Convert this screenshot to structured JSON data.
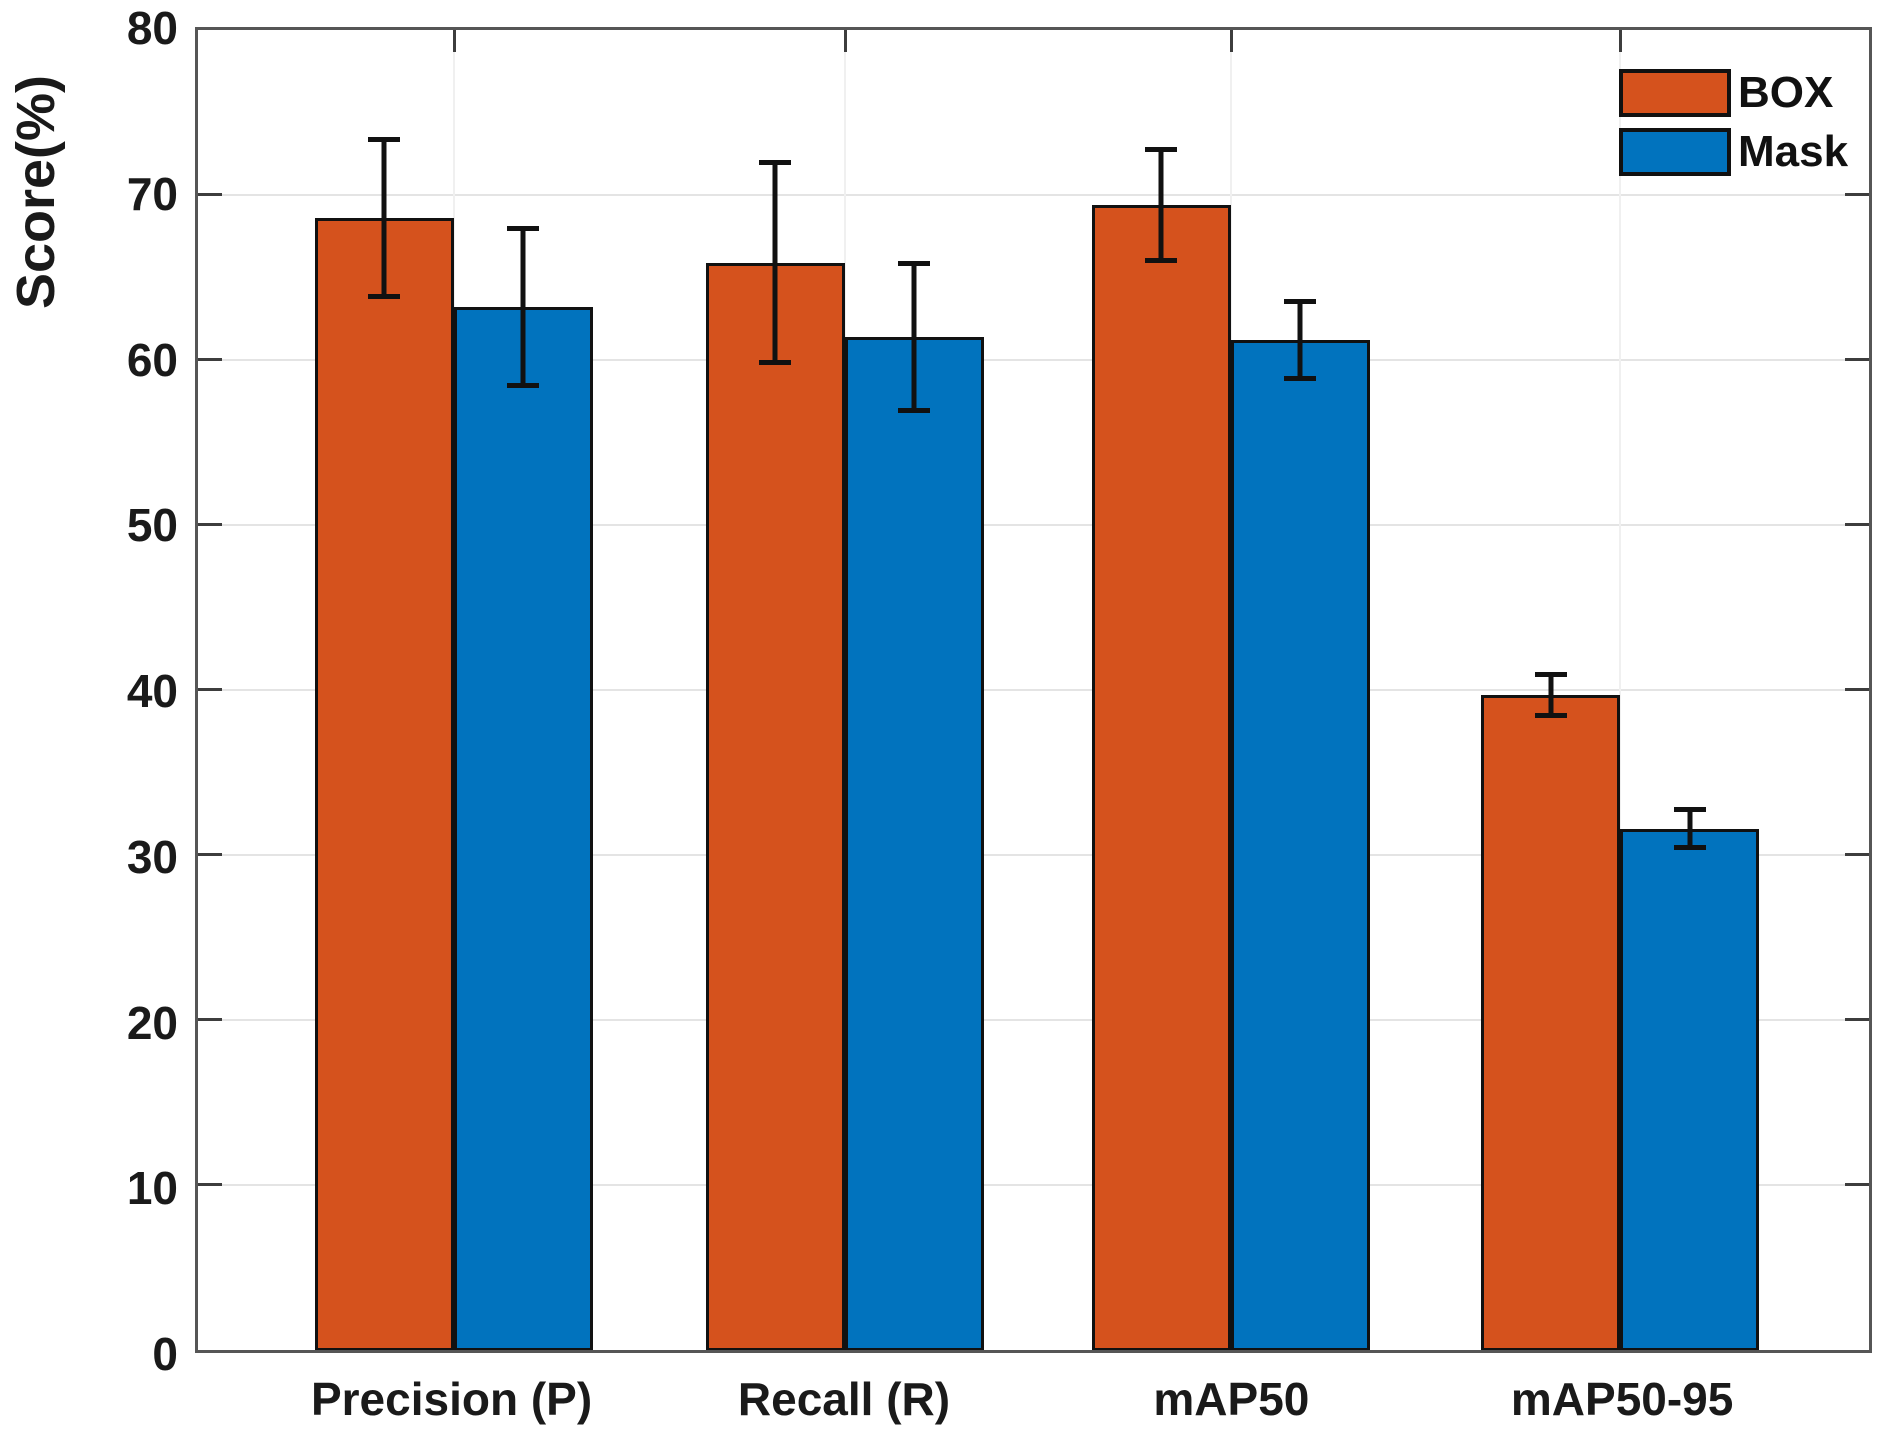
{
  "chart_data": {
    "type": "bar",
    "title": "",
    "ylabel": "Score(%)",
    "xlabel": "",
    "categories": [
      "Precision (P)",
      "Recall (R)",
      "mAP50",
      "mAP50-95"
    ],
    "series": [
      {
        "name": "BOX",
        "color": "#d5521d",
        "values": [
          68.6,
          65.9,
          69.4,
          39.7
        ],
        "errors": [
          4.9,
          6.2,
          3.5,
          1.4
        ]
      },
      {
        "name": "Mask",
        "color": "#0173be",
        "values": [
          63.2,
          61.4,
          61.2,
          31.6
        ],
        "errors": [
          4.9,
          4.6,
          2.5,
          1.3
        ]
      }
    ],
    "ylim": [
      0,
      80
    ],
    "yticks": [
      0,
      10,
      20,
      30,
      40,
      50,
      60,
      70,
      80
    ],
    "ytick_labels": [
      "0",
      "10",
      "20",
      "30",
      "40",
      "50",
      "60",
      "70",
      "80"
    ],
    "grid": true,
    "legend_position": "top-right",
    "category_centers_pct": [
      15.3,
      38.7,
      61.8,
      85.1
    ],
    "colors": {
      "bar_edge": "#111111",
      "error_bar": "#111111",
      "grid_y": "#e4e4e4",
      "grid_x": "#f0f0f0",
      "axis_box": "#565656",
      "tick_mark": "#3d3d3d",
      "text": "#1a1a1a"
    }
  }
}
